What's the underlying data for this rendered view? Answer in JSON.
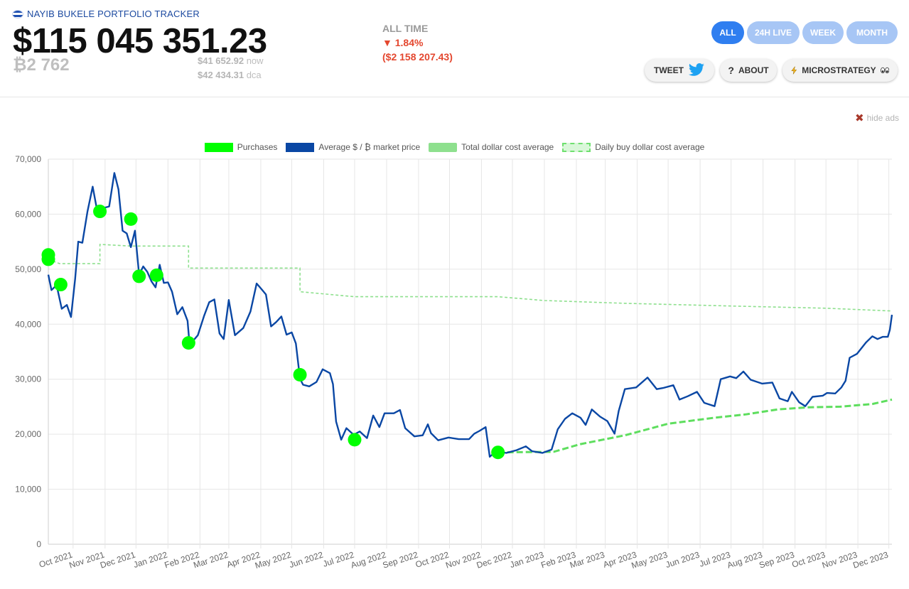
{
  "header": {
    "app_title": "NAYIB BUKELE PORTFOLIO TRACKER",
    "total_value": "$115 045 351.23",
    "btc_amount": "₿2 762",
    "price_now_value": "$41 652.92",
    "price_now_label": "now",
    "price_dca_value": "$42 434.31",
    "price_dca_label": "dca",
    "period_label": "ALL TIME",
    "change_pct": "▼ 1.84%",
    "change_abs": "($2 158 207.43)",
    "loss_color": "#e4472f"
  },
  "tabs": [
    {
      "label": "ALL",
      "active": true
    },
    {
      "label": "24H LIVE",
      "active": false
    },
    {
      "label": "WEEK",
      "active": false
    },
    {
      "label": "MONTH",
      "active": false
    }
  ],
  "actions": {
    "tweet": "TWEET",
    "about": "ABOUT",
    "microstrategy": "MICROSTRATEGY"
  },
  "hide_ads": "hide ads",
  "chart_data": {
    "type": "line",
    "legend": [
      "Purchases",
      "Average $ / ₿ market price",
      "Total dollar cost average",
      "Daily buy dollar cost average"
    ],
    "ylim": [
      0,
      70000
    ],
    "yticks": [
      "0",
      "10,000",
      "20,000",
      "30,000",
      "40,000",
      "50,000",
      "60,000",
      "70,000"
    ],
    "x_labels": [
      "Oct 2021",
      "Nov 2021",
      "Dec 2021",
      "Jan 2022",
      "Feb 2022",
      "Mar 2022",
      "Apr 2022",
      "May 2022",
      "Jun 2022",
      "Jul 2022",
      "Aug 2022",
      "Sep 2022",
      "Oct 2022",
      "Nov 2022",
      "Dec 2022",
      "Jan 2023",
      "Feb 2023",
      "Mar 2023",
      "Apr 2023",
      "May 2023",
      "Jun 2023",
      "Jul 2023",
      "Aug 2023",
      "Sep 2023",
      "Oct 2023",
      "Nov 2023",
      "Dec 2023"
    ],
    "colors": {
      "market": "#0a47a4",
      "purchases": "#00ff00",
      "total_dca": "#8ee08e",
      "daily_dca": "#5ede5e"
    },
    "market_price": [
      [
        "2021-09-07",
        49000
      ],
      [
        "2021-09-10",
        46200
      ],
      [
        "2021-09-15",
        47100
      ],
      [
        "2021-09-20",
        42800
      ],
      [
        "2021-09-25",
        43500
      ],
      [
        "2021-09-29",
        41300
      ],
      [
        "2021-10-03",
        48200
      ],
      [
        "2021-10-06",
        55000
      ],
      [
        "2021-10-10",
        54800
      ],
      [
        "2021-10-15",
        60500
      ],
      [
        "2021-10-20",
        65000
      ],
      [
        "2021-10-24",
        61000
      ],
      [
        "2021-10-28",
        60600
      ],
      [
        "2021-11-01",
        61200
      ],
      [
        "2021-11-05",
        61400
      ],
      [
        "2021-11-10",
        67500
      ],
      [
        "2021-11-14",
        64500
      ],
      [
        "2021-11-18",
        57000
      ],
      [
        "2021-11-22",
        56500
      ],
      [
        "2021-11-26",
        54000
      ],
      [
        "2021-11-30",
        57000
      ],
      [
        "2021-12-04",
        49000
      ],
      [
        "2021-12-08",
        50500
      ],
      [
        "2021-12-12",
        49500
      ],
      [
        "2021-12-16",
        47800
      ],
      [
        "2021-12-20",
        46700
      ],
      [
        "2021-12-24",
        50800
      ],
      [
        "2021-12-28",
        47500
      ],
      [
        "2022-01-01",
        47600
      ],
      [
        "2022-01-05",
        45900
      ],
      [
        "2022-01-10",
        41800
      ],
      [
        "2022-01-15",
        43100
      ],
      [
        "2022-01-20",
        40600
      ],
      [
        "2022-01-22",
        36200
      ],
      [
        "2022-01-25",
        36900
      ],
      [
        "2022-01-30",
        38000
      ],
      [
        "2022-02-05",
        41500
      ],
      [
        "2022-02-10",
        44000
      ],
      [
        "2022-02-15",
        44500
      ],
      [
        "2022-02-20",
        38300
      ],
      [
        "2022-02-24",
        37300
      ],
      [
        "2022-03-01",
        44400
      ],
      [
        "2022-03-07",
        38000
      ],
      [
        "2022-03-15",
        39300
      ],
      [
        "2022-03-22",
        42300
      ],
      [
        "2022-03-28",
        47400
      ],
      [
        "2022-04-02",
        46300
      ],
      [
        "2022-04-06",
        45400
      ],
      [
        "2022-04-11",
        39600
      ],
      [
        "2022-04-16",
        40400
      ],
      [
        "2022-04-21",
        41400
      ],
      [
        "2022-04-26",
        38100
      ],
      [
        "2022-05-01",
        38500
      ],
      [
        "2022-05-05",
        36500
      ],
      [
        "2022-05-09",
        30100
      ],
      [
        "2022-05-12",
        29000
      ],
      [
        "2022-05-18",
        28700
      ],
      [
        "2022-05-25",
        29500
      ],
      [
        "2022-05-31",
        31800
      ],
      [
        "2022-06-07",
        31100
      ],
      [
        "2022-06-10",
        29100
      ],
      [
        "2022-06-13",
        22300
      ],
      [
        "2022-06-18",
        19000
      ],
      [
        "2022-06-23",
        21100
      ],
      [
        "2022-06-30",
        19900
      ],
      [
        "2022-07-06",
        20500
      ],
      [
        "2022-07-13",
        19300
      ],
      [
        "2022-07-19",
        23400
      ],
      [
        "2022-07-25",
        21300
      ],
      [
        "2022-07-30",
        23800
      ],
      [
        "2022-08-08",
        23800
      ],
      [
        "2022-08-14",
        24400
      ],
      [
        "2022-08-19",
        21100
      ],
      [
        "2022-08-28",
        19600
      ],
      [
        "2022-09-05",
        19800
      ],
      [
        "2022-09-10",
        21800
      ],
      [
        "2022-09-13",
        20200
      ],
      [
        "2022-09-20",
        18900
      ],
      [
        "2022-09-30",
        19400
      ],
      [
        "2022-10-10",
        19100
      ],
      [
        "2022-10-20",
        19100
      ],
      [
        "2022-10-25",
        20100
      ],
      [
        "2022-10-30",
        20600
      ],
      [
        "2022-11-05",
        21300
      ],
      [
        "2022-11-09",
        15900
      ],
      [
        "2022-11-15",
        16900
      ],
      [
        "2022-11-25",
        16600
      ],
      [
        "2022-12-05",
        17100
      ],
      [
        "2022-12-14",
        17800
      ],
      [
        "2022-12-20",
        16900
      ],
      [
        "2022-12-30",
        16600
      ],
      [
        "2023-01-08",
        17200
      ],
      [
        "2023-01-14",
        20900
      ],
      [
        "2023-01-21",
        22800
      ],
      [
        "2023-01-28",
        23800
      ],
      [
        "2023-02-05",
        23000
      ],
      [
        "2023-02-10",
        21700
      ],
      [
        "2023-02-16",
        24500
      ],
      [
        "2023-02-24",
        23200
      ],
      [
        "2023-03-03",
        22400
      ],
      [
        "2023-03-10",
        20100
      ],
      [
        "2023-03-14",
        24200
      ],
      [
        "2023-03-20",
        28200
      ],
      [
        "2023-03-31",
        28500
      ],
      [
        "2023-04-11",
        30300
      ],
      [
        "2023-04-20",
        28200
      ],
      [
        "2023-04-26",
        28400
      ],
      [
        "2023-05-06",
        28900
      ],
      [
        "2023-05-12",
        26300
      ],
      [
        "2023-05-20",
        26900
      ],
      [
        "2023-05-29",
        27700
      ],
      [
        "2023-06-05",
        25700
      ],
      [
        "2023-06-15",
        25100
      ],
      [
        "2023-06-21",
        30000
      ],
      [
        "2023-06-30",
        30500
      ],
      [
        "2023-07-06",
        30200
      ],
      [
        "2023-07-13",
        31400
      ],
      [
        "2023-07-20",
        29900
      ],
      [
        "2023-07-31",
        29200
      ],
      [
        "2023-08-10",
        29400
      ],
      [
        "2023-08-17",
        26500
      ],
      [
        "2023-08-25",
        26000
      ],
      [
        "2023-08-29",
        27700
      ],
      [
        "2023-09-05",
        25800
      ],
      [
        "2023-09-11",
        25100
      ],
      [
        "2023-09-18",
        26800
      ],
      [
        "2023-09-28",
        27000
      ],
      [
        "2023-10-02",
        27500
      ],
      [
        "2023-10-10",
        27400
      ],
      [
        "2023-10-16",
        28500
      ],
      [
        "2023-10-20",
        29700
      ],
      [
        "2023-10-24",
        33900
      ],
      [
        "2023-10-31",
        34600
      ],
      [
        "2023-11-09",
        36700
      ],
      [
        "2023-11-15",
        37800
      ],
      [
        "2023-11-20",
        37300
      ],
      [
        "2023-11-25",
        37700
      ],
      [
        "2023-11-30",
        37700
      ],
      [
        "2023-12-02",
        39000
      ],
      [
        "2023-12-04",
        41700
      ]
    ],
    "total_dca": [
      [
        "2021-09-07",
        51800
      ],
      [
        "2021-09-18",
        51000
      ],
      [
        "2021-10-27",
        51000
      ],
      [
        "2021-10-27",
        54500
      ],
      [
        "2021-11-26",
        54200
      ],
      [
        "2021-12-21",
        54200
      ],
      [
        "2022-01-21",
        54200
      ],
      [
        "2022-01-21",
        50200
      ],
      [
        "2022-05-09",
        50200
      ],
      [
        "2022-05-09",
        45900
      ],
      [
        "2022-07-01",
        45000
      ],
      [
        "2022-11-17",
        45000
      ],
      [
        "2023-01-01",
        44300
      ],
      [
        "2023-03-20",
        43800
      ],
      [
        "2023-07-01",
        43300
      ],
      [
        "2023-10-01",
        42900
      ],
      [
        "2023-12-04",
        42400
      ]
    ],
    "daily_dca": [
      [
        "2022-11-17",
        16700
      ],
      [
        "2023-01-10",
        16800
      ],
      [
        "2023-02-05",
        18200
      ],
      [
        "2023-03-20",
        19800
      ],
      [
        "2023-05-01",
        21900
      ],
      [
        "2023-06-15",
        23000
      ],
      [
        "2023-07-15",
        23600
      ],
      [
        "2023-08-15",
        24500
      ],
      [
        "2023-09-15",
        24900
      ],
      [
        "2023-10-15",
        25000
      ],
      [
        "2023-11-15",
        25500
      ],
      [
        "2023-12-04",
        26300
      ]
    ],
    "purchases": [
      [
        "2021-09-07",
        52600
      ],
      [
        "2021-09-07",
        51800
      ],
      [
        "2021-09-19",
        47200
      ],
      [
        "2021-10-27",
        60500
      ],
      [
        "2021-11-26",
        59100
      ],
      [
        "2021-12-04",
        48700
      ],
      [
        "2021-12-21",
        48900
      ],
      [
        "2022-01-21",
        36600
      ],
      [
        "2022-05-09",
        30800
      ],
      [
        "2022-07-01",
        19000
      ],
      [
        "2022-11-17",
        16700
      ]
    ]
  }
}
